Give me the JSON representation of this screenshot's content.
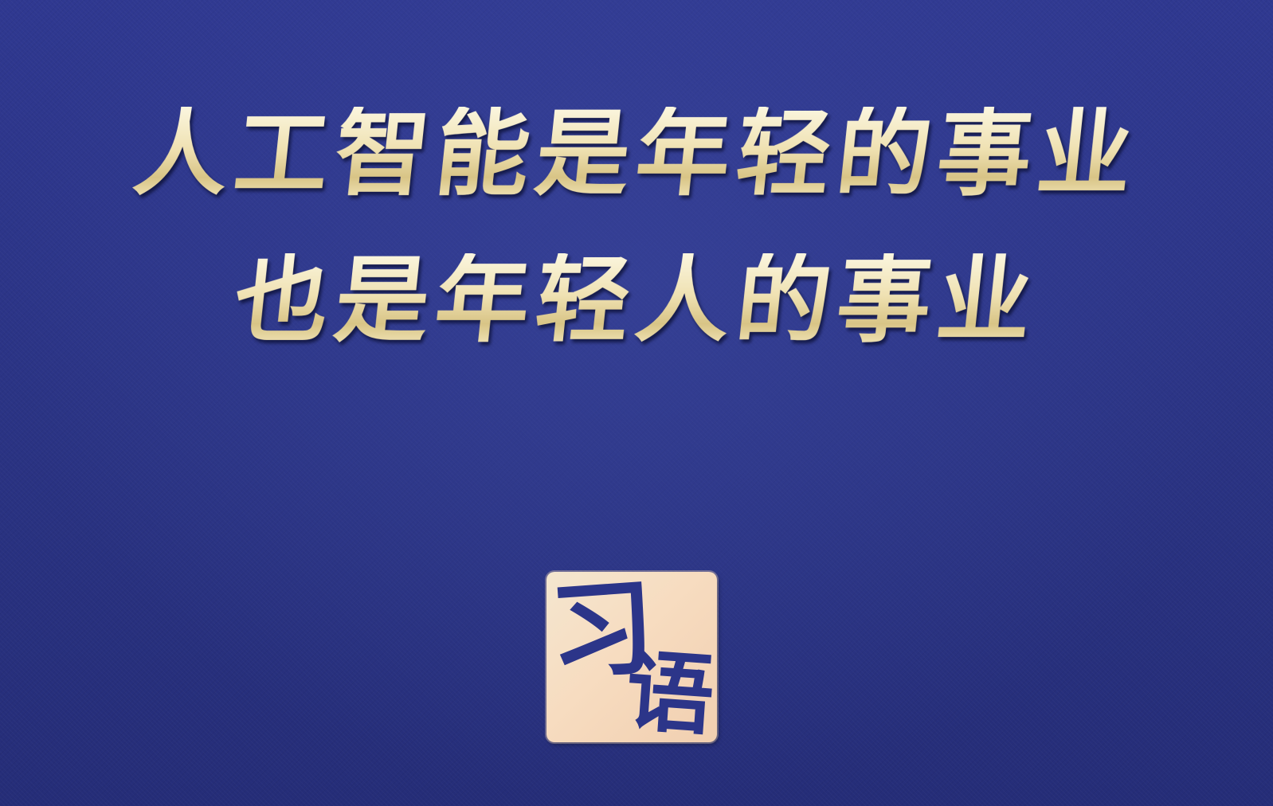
{
  "headline": {
    "line1": "人工智能是年轻的事业",
    "line2": "也是年轻人的事业"
  },
  "seal": {
    "char1": "习",
    "char2": "语"
  },
  "colors": {
    "background": "#2c3589",
    "text_gold": "#efe1b2",
    "seal_bg": "#f4e0c6"
  }
}
